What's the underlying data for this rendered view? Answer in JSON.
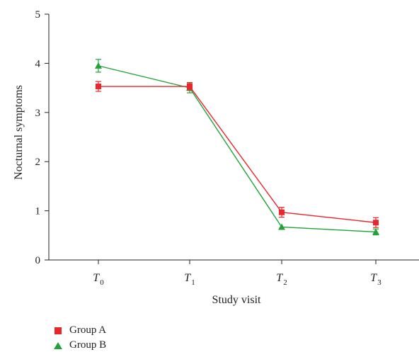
{
  "chart_data": {
    "type": "line",
    "categories": [
      {
        "base": "T",
        "sub": "0"
      },
      {
        "base": "T",
        "sub": "1"
      },
      {
        "base": "T",
        "sub": "2"
      },
      {
        "base": "T",
        "sub": "3"
      }
    ],
    "xlabel": "Study visit",
    "ylabel": "Nocturnal  symptoms",
    "ylim": [
      0,
      5
    ],
    "yticks": [
      "0",
      "1",
      "2",
      "3",
      "4",
      "5"
    ],
    "grid": false,
    "legend_position": "bottom-left",
    "series": [
      {
        "name": "Group A",
        "color": "#e8262b",
        "marker": "square",
        "values": [
          3.53,
          3.53,
          0.97,
          0.76
        ],
        "errors": [
          0.1,
          0.08,
          0.1,
          0.1
        ]
      },
      {
        "name": "Group B",
        "color": "#21a33a",
        "marker": "triangle",
        "values": [
          3.95,
          3.5,
          0.67,
          0.57
        ],
        "errors": [
          0.13,
          0.1,
          0.0,
          0.06
        ]
      }
    ]
  }
}
